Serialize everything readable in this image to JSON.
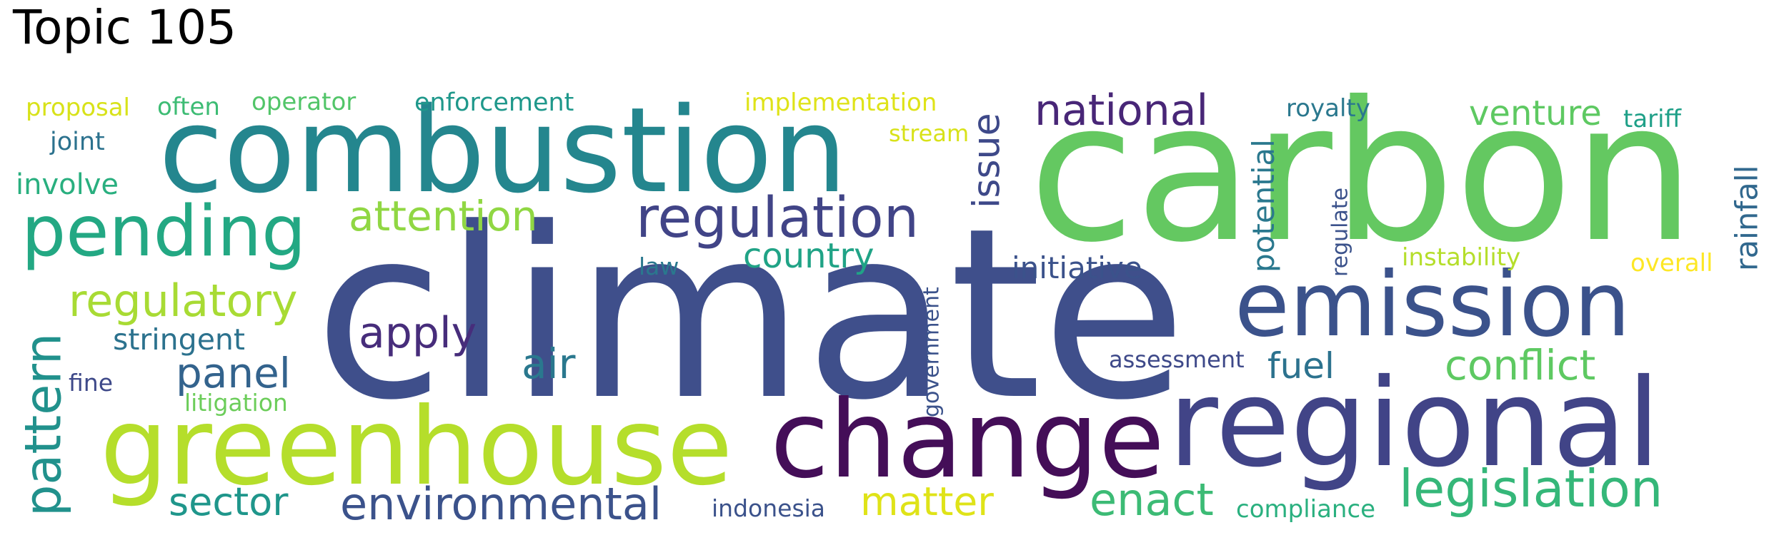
{
  "title": "Topic 105",
  "words": [
    {
      "id": "climate",
      "text": "climate",
      "color": "#3f4f8b"
    },
    {
      "id": "carbon",
      "text": "carbon",
      "color": "#64c861"
    },
    {
      "id": "combustion",
      "text": "combustion",
      "color": "#24868e"
    },
    {
      "id": "regional",
      "text": "regional",
      "color": "#414487"
    },
    {
      "id": "greenhouse",
      "text": "greenhouse",
      "color": "#b5de2b"
    },
    {
      "id": "change",
      "text": "change",
      "color": "#440e58"
    },
    {
      "id": "emission",
      "text": "emission",
      "color": "#3b528b"
    },
    {
      "id": "pending",
      "text": "pending",
      "color": "#23a883"
    },
    {
      "id": "regulation",
      "text": "regulation",
      "color": "#414487"
    },
    {
      "id": "legislation",
      "text": "legislation",
      "color": "#35b779"
    },
    {
      "id": "environmental",
      "text": "environmental",
      "color": "#3b528b"
    },
    {
      "id": "national",
      "text": "national",
      "color": "#482677"
    },
    {
      "id": "attention",
      "text": "attention",
      "color": "#90d743"
    },
    {
      "id": "regulatory",
      "text": "regulatory",
      "color": "#a8db34"
    },
    {
      "id": "pattern",
      "text": "pattern",
      "color": "#21918c"
    },
    {
      "id": "conflict",
      "text": "conflict",
      "color": "#5ec962"
    },
    {
      "id": "enact",
      "text": "enact",
      "color": "#3cbb75"
    },
    {
      "id": "matter",
      "text": "matter",
      "color": "#dfe318"
    },
    {
      "id": "sector",
      "text": "sector",
      "color": "#1f968b"
    },
    {
      "id": "venture",
      "text": "venture",
      "color": "#5ec962"
    },
    {
      "id": "issue",
      "text": "issue",
      "color": "#3e4989"
    },
    {
      "id": "apply",
      "text": "apply",
      "color": "#472d7b"
    },
    {
      "id": "panel",
      "text": "panel",
      "color": "#33638d"
    },
    {
      "id": "country",
      "text": "country",
      "color": "#20a386"
    },
    {
      "id": "air",
      "text": "air",
      "color": "#2a788e"
    },
    {
      "id": "fuel",
      "text": "fuel",
      "color": "#2c728e"
    },
    {
      "id": "rainfall",
      "text": "rainfall",
      "color": "#31688e"
    },
    {
      "id": "potential",
      "text": "potential",
      "color": "#2a788e"
    },
    {
      "id": "initiative",
      "text": "initiative",
      "color": "#3b528b"
    },
    {
      "id": "stringent",
      "text": "stringent",
      "color": "#2c728e"
    },
    {
      "id": "involve",
      "text": "involve",
      "color": "#29af7f"
    },
    {
      "id": "enforcement",
      "text": "enforcement",
      "color": "#1f988b"
    },
    {
      "id": "implementation",
      "text": "implementation",
      "color": "#dfe318"
    },
    {
      "id": "operator",
      "text": "operator",
      "color": "#52c569"
    },
    {
      "id": "often",
      "text": "often",
      "color": "#3dbc74"
    },
    {
      "id": "proposal",
      "text": "proposal",
      "color": "#d8e219"
    },
    {
      "id": "joint",
      "text": "joint",
      "color": "#2c728e"
    },
    {
      "id": "royalty",
      "text": "royalty",
      "color": "#2a788e"
    },
    {
      "id": "tariff",
      "text": "tariff",
      "color": "#1fa088"
    },
    {
      "id": "stream",
      "text": "stream",
      "color": "#d8e219"
    },
    {
      "id": "law",
      "text": "law",
      "color": "#2a788e"
    },
    {
      "id": "regulate",
      "text": "regulate",
      "color": "#3b528b"
    },
    {
      "id": "instability",
      "text": "instability",
      "color": "#b5de2b"
    },
    {
      "id": "overall",
      "text": "overall",
      "color": "#fde725"
    },
    {
      "id": "assessment",
      "text": "assessment",
      "color": "#3e4989"
    },
    {
      "id": "government",
      "text": "government",
      "color": "#3b528b"
    },
    {
      "id": "fine",
      "text": "fine",
      "color": "#3e4989"
    },
    {
      "id": "litigation",
      "text": "litigation",
      "color": "#6ccd5a"
    },
    {
      "id": "indonesia",
      "text": "indonesia",
      "color": "#3b528b"
    },
    {
      "id": "compliance",
      "text": "compliance",
      "color": "#2ab07f"
    }
  ]
}
